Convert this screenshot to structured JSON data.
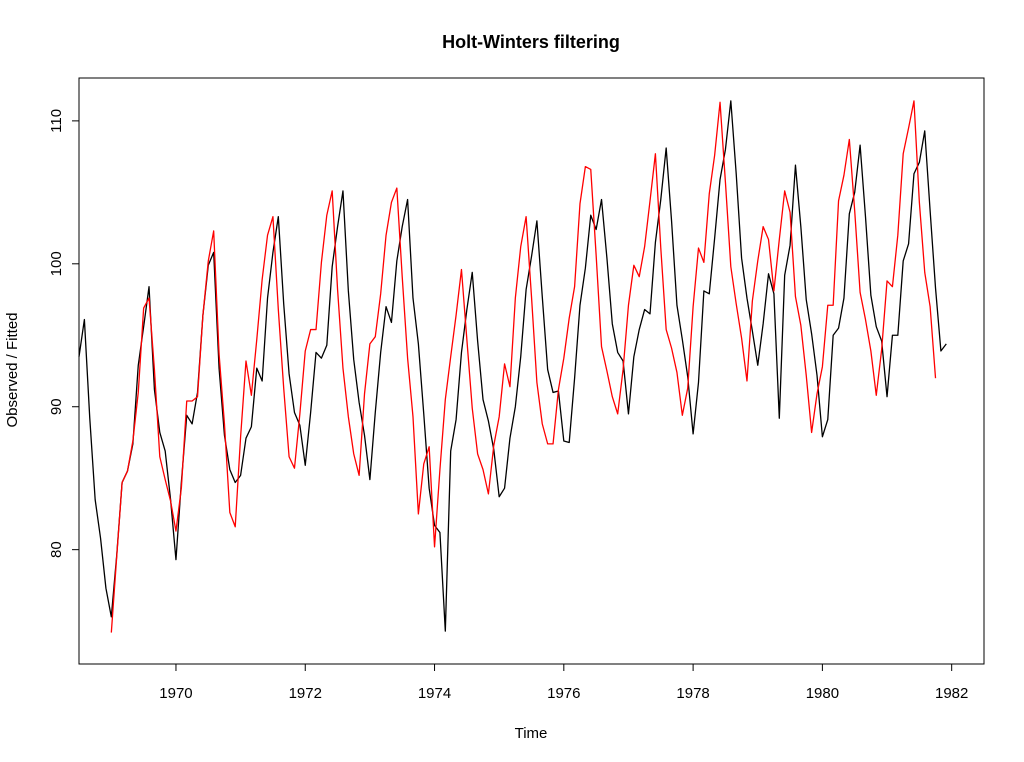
{
  "chart_data": {
    "type": "line",
    "title": "Holt-Winters filtering",
    "xlabel": "Time",
    "ylabel": "Observed / Fitted",
    "xlim": [
      1968.5,
      1982.5
    ],
    "ylim": [
      72,
      113
    ],
    "x_ticks": [
      1970,
      1972,
      1974,
      1976,
      1978,
      1980,
      1982
    ],
    "y_ticks": [
      80,
      90,
      100,
      110
    ],
    "grid": false,
    "legend": "none",
    "series": [
      {
        "color": "#000000",
        "start": 1968.5,
        "step": 0.0833333,
        "values": [
          93.5,
          96.1,
          89.2,
          83.5,
          80.8,
          77.3,
          75.3,
          79.6,
          84.7,
          85.5,
          87.4,
          92.9,
          95.6,
          98.4,
          91.2,
          88.2,
          86.9,
          83.5,
          79.3,
          84.7,
          89.4,
          88.8,
          91.0,
          96.4,
          99.9,
          100.8,
          92.7,
          88.0,
          85.6,
          84.7,
          85.2,
          87.8,
          88.6,
          92.7,
          91.8,
          97.6,
          100.8,
          103.3,
          97.2,
          92.3,
          89.6,
          88.7,
          85.9,
          89.6,
          93.8,
          93.4,
          94.3,
          99.8,
          102.6,
          105.1,
          98.1,
          93.3,
          90.3,
          88.0,
          84.9,
          89.6,
          93.8,
          97.0,
          95.9,
          100.2,
          102.6,
          104.5,
          97.6,
          94.4,
          89.5,
          84.3,
          81.7,
          81.2,
          74.3,
          86.9,
          89.1,
          93.8,
          96.8,
          99.4,
          94.6,
          90.5,
          89.0,
          87.0,
          83.7,
          84.3,
          87.8,
          90.0,
          93.5,
          98.2,
          100.5,
          103.0,
          97.7,
          92.6,
          91.0,
          91.1,
          87.6,
          87.5,
          92.0,
          97.1,
          99.7,
          103.4,
          102.4,
          104.5,
          100.4,
          95.8,
          93.8,
          93.2,
          89.5,
          93.5,
          95.4,
          96.8,
          96.5,
          101.5,
          104.5,
          108.1,
          103.0,
          97.1,
          94.7,
          92.1,
          88.1,
          91.7,
          98.1,
          97.9,
          101.8,
          105.9,
          108.0,
          111.4,
          106.3,
          100.4,
          97.6,
          95.3,
          92.9,
          95.8,
          99.3,
          97.9,
          89.2,
          99.2,
          101.3,
          106.9,
          102.6,
          97.5,
          95.1,
          92.2,
          87.9,
          89.1,
          95.0,
          95.5,
          97.6,
          103.5,
          105.0,
          108.3,
          103.3,
          97.8,
          95.6,
          94.6,
          90.7,
          95.0,
          95.0,
          100.2,
          101.4,
          106.3,
          107.1,
          109.3,
          103.7,
          98.3,
          93.9,
          94.4
        ]
      },
      {
        "color": "#ff0000",
        "start": 1969.0,
        "step": 0.0833333,
        "values": [
          74.2,
          79.5,
          84.7,
          85.5,
          87.6,
          91.0,
          96.9,
          97.6,
          92.6,
          86.5,
          84.9,
          83.4,
          81.3,
          84.3,
          90.4,
          90.4,
          90.7,
          96.4,
          100.2,
          102.3,
          93.7,
          88.8,
          82.6,
          81.6,
          87.9,
          93.2,
          90.8,
          94.7,
          98.9,
          102.0,
          103.3,
          96.8,
          91.3,
          86.5,
          85.7,
          89.5,
          93.9,
          95.4,
          95.4,
          100.1,
          103.4,
          105.1,
          98.2,
          92.7,
          89.3,
          86.7,
          85.2,
          90.9,
          94.4,
          94.9,
          97.9,
          102.0,
          104.3,
          105.3,
          99.1,
          93.4,
          89.3,
          82.5,
          86.0,
          87.2,
          80.2,
          85.6,
          90.5,
          93.5,
          96.4,
          99.6,
          94.7,
          89.9,
          86.7,
          85.6,
          83.9,
          87.3,
          89.3,
          93.0,
          91.4,
          97.6,
          101.2,
          103.3,
          97.7,
          91.7,
          88.8,
          87.4,
          87.4,
          91.2,
          93.4,
          96.2,
          98.4,
          104.2,
          106.8,
          106.6,
          100.6,
          94.2,
          92.5,
          90.7,
          89.5,
          92.6,
          97.1,
          99.9,
          99.1,
          101.2,
          104.4,
          107.7,
          101.1,
          95.4,
          94.1,
          92.4,
          89.4,
          91.3,
          97.0,
          101.1,
          100.1,
          104.9,
          107.6,
          111.3,
          105.7,
          99.8,
          97.2,
          94.8,
          91.8,
          97.4,
          100.2,
          102.6,
          101.7,
          98.1,
          101.7,
          105.1,
          103.6,
          97.7,
          95.7,
          92.2,
          88.2,
          90.9,
          92.8,
          97.1,
          97.1,
          104.4,
          106.2,
          108.7,
          103.7,
          98.0,
          96.1,
          93.9,
          90.8,
          94.0,
          98.8,
          98.4,
          102.0,
          107.7,
          109.5,
          111.4,
          104.3,
          99.4,
          97.0,
          92.0
        ]
      }
    ]
  }
}
